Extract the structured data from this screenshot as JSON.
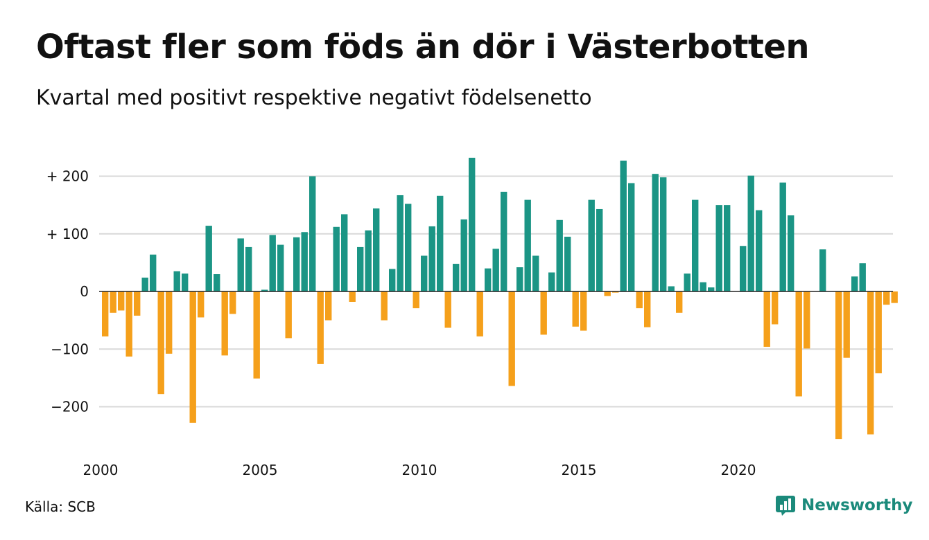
{
  "header": {
    "title": "Oftast fler som föds än dör i Västerbotten",
    "subtitle": "Kvartal med positivt respektive negativt födelsenetto"
  },
  "footer": {
    "source": "Källa: SCB",
    "brand": "Newsworthy",
    "brand_icon": "bar-chart-icon"
  },
  "colors": {
    "positive": "#1b9585",
    "negative": "#f5a01b",
    "grid": "#d9d9d9",
    "zero_line": "#222222",
    "brand": "#1b8a7b"
  },
  "chart_data": {
    "type": "bar",
    "x_start_year": 2000,
    "x_step_years": 0.25,
    "ylim": [
      -270,
      240
    ],
    "y_ticks": [
      {
        "value": 200,
        "label": "+ 200"
      },
      {
        "value": 100,
        "label": "+ 100"
      },
      {
        "value": 0,
        "label": "0"
      },
      {
        "value": -100,
        "label": "−100"
      },
      {
        "value": -200,
        "label": "−200"
      }
    ],
    "x_ticks": [
      {
        "value": 2000,
        "label": "2000"
      },
      {
        "value": 2005,
        "label": "2005"
      },
      {
        "value": 2010,
        "label": "2010"
      },
      {
        "value": 2015,
        "label": "2015"
      },
      {
        "value": 2020,
        "label": "2020"
      }
    ],
    "grid": true,
    "values": [
      -78,
      -37,
      -33,
      -113,
      -42,
      24,
      64,
      -178,
      -108,
      35,
      31,
      -228,
      -45,
      114,
      30,
      -111,
      -39,
      92,
      77,
      -151,
      3,
      98,
      81,
      -81,
      94,
      103,
      200,
      -126,
      -50,
      112,
      134,
      -18,
      77,
      106,
      144,
      -50,
      39,
      167,
      152,
      -29,
      62,
      113,
      166,
      -63,
      48,
      125,
      232,
      -78,
      40,
      74,
      173,
      -164,
      42,
      159,
      62,
      -75,
      33,
      124,
      95,
      -61,
      -68,
      159,
      143,
      -8,
      -2,
      227,
      188,
      -29,
      -62,
      204,
      198,
      9,
      -37,
      31,
      159,
      16,
      7,
      150,
      150,
      0,
      79,
      201,
      141,
      -96,
      -57,
      189,
      132,
      -182,
      -99,
      0,
      73,
      0,
      -256,
      -115,
      26,
      49,
      -248,
      -142,
      -23,
      -20
    ]
  }
}
